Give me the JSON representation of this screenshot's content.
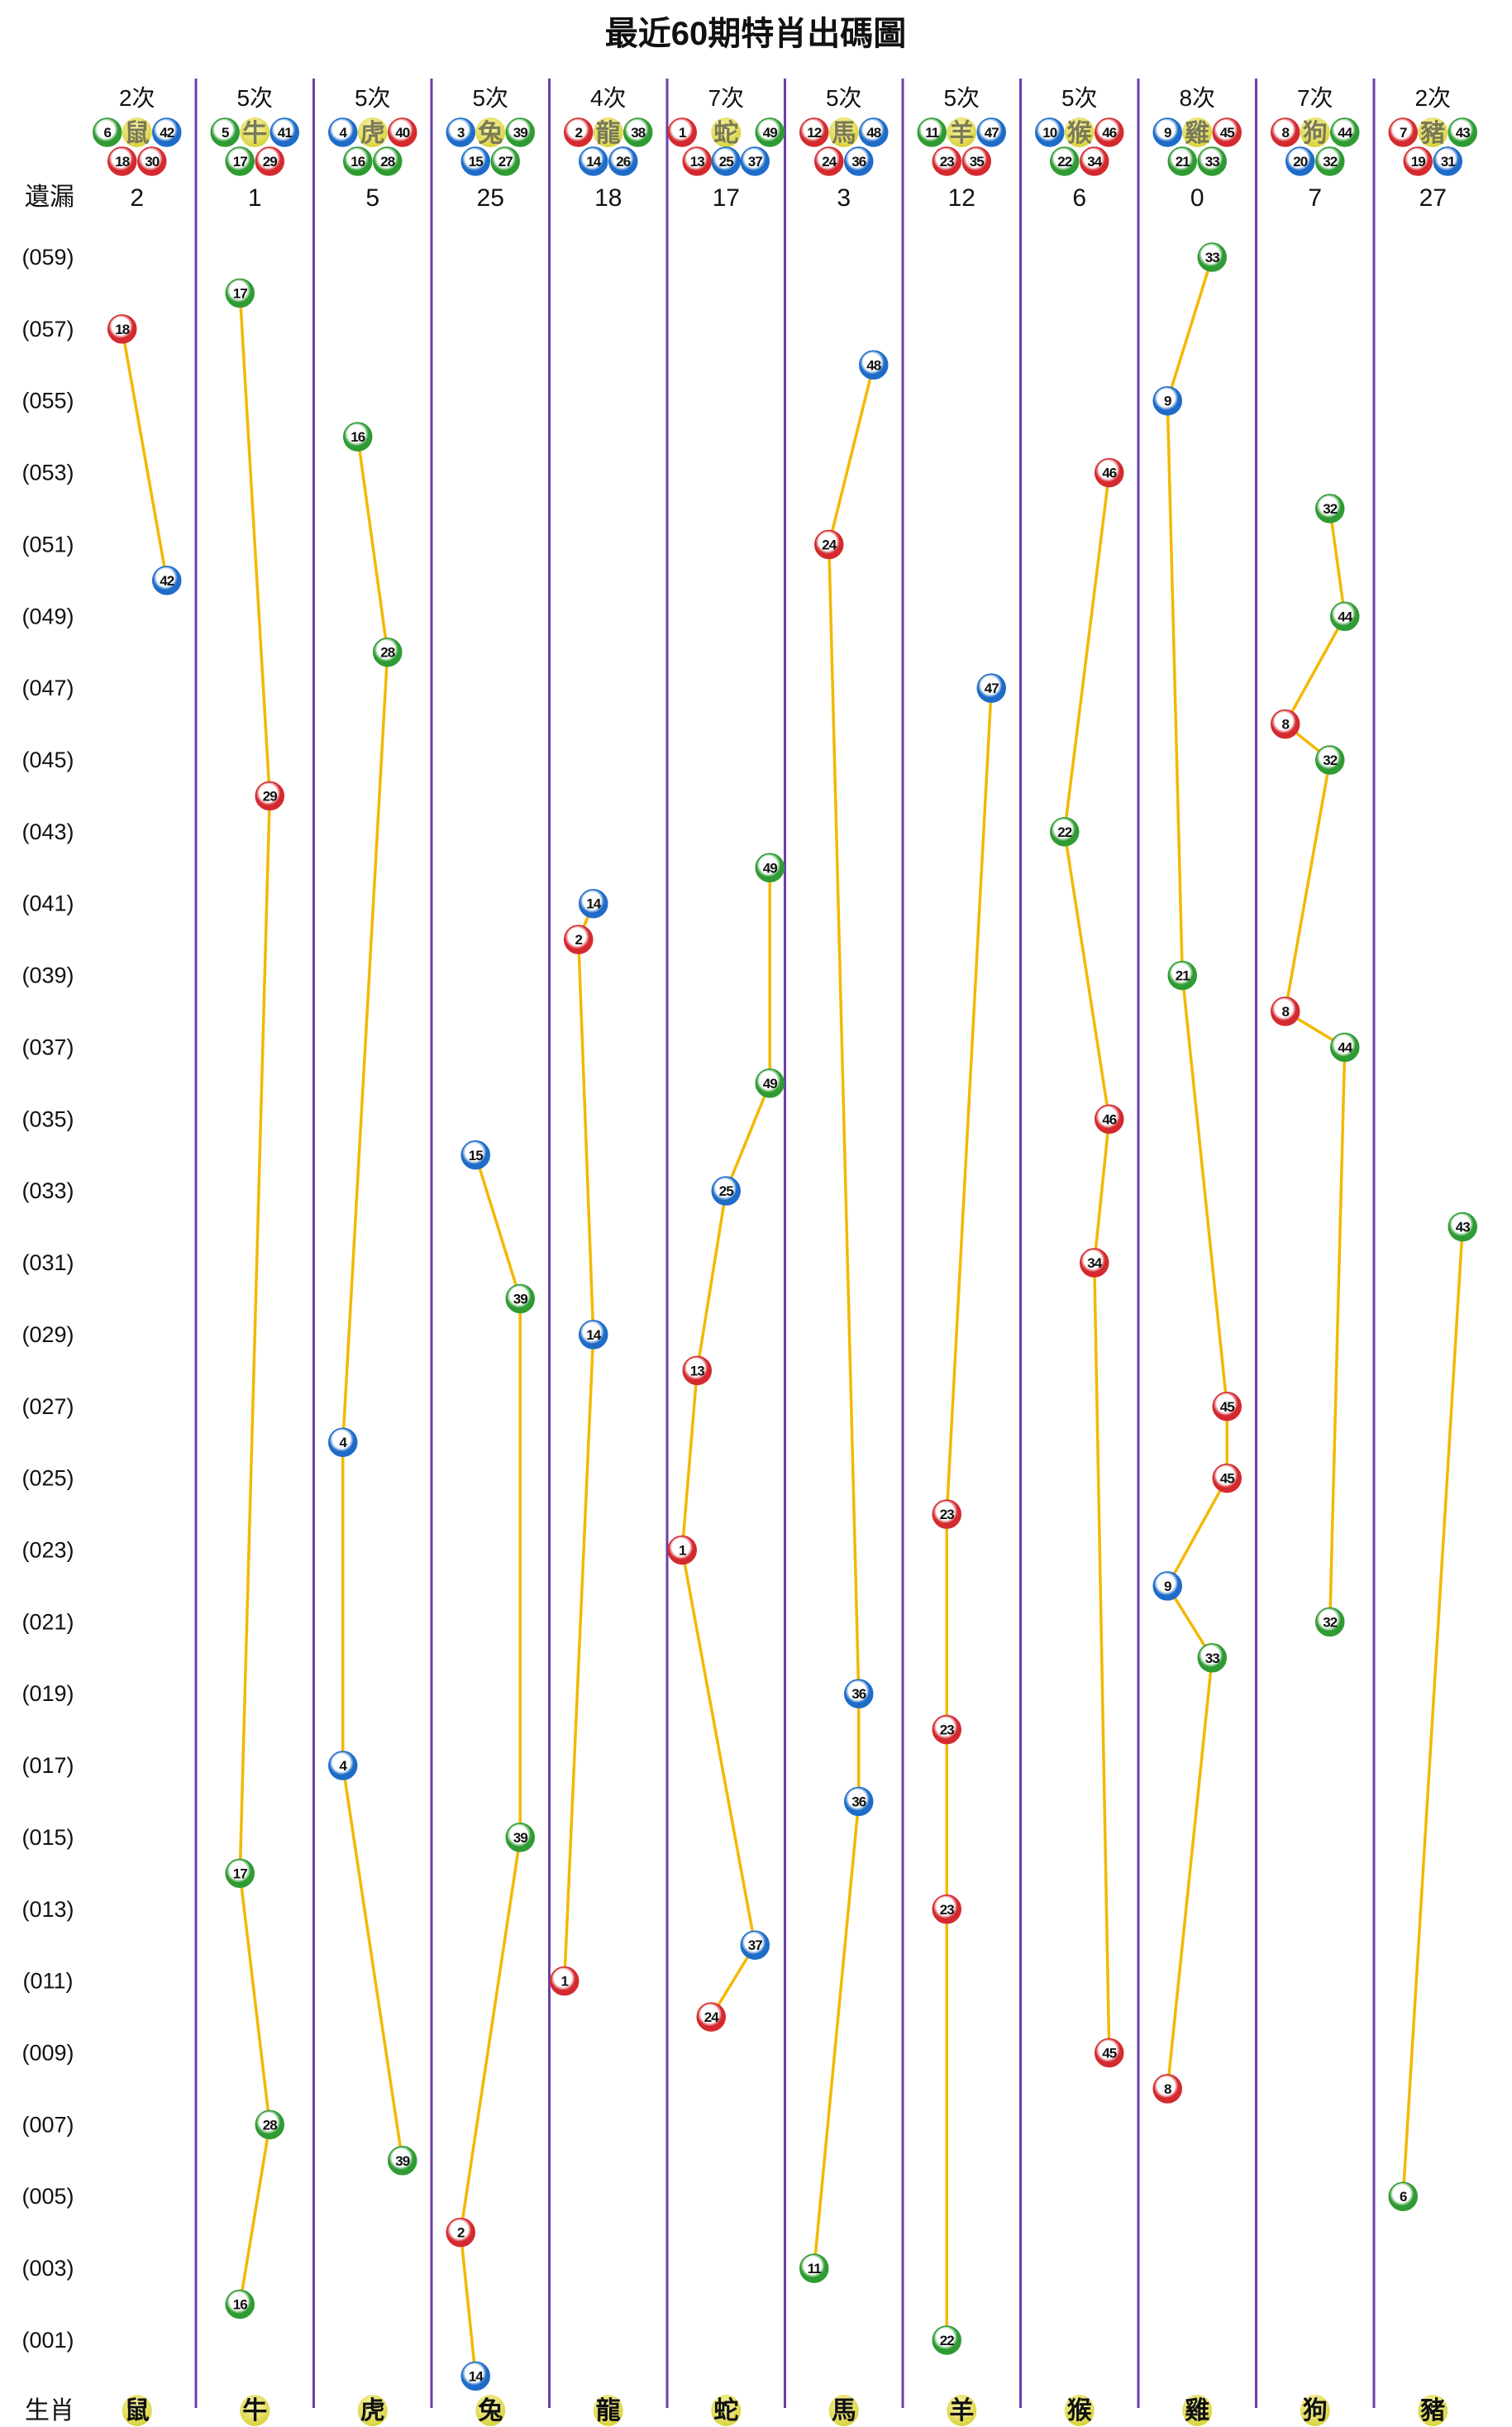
{
  "chart_data": {
    "type": "scatter",
    "title": "最近60期特肖出碼圖",
    "missing_label": "遺漏",
    "zodiac_label": "生肖",
    "columns": [
      {
        "zodiac": "鼠",
        "count": "2次",
        "numbers": [
          6,
          18,
          30,
          42
        ],
        "missing": "2"
      },
      {
        "zodiac": "牛",
        "count": "5次",
        "numbers": [
          5,
          17,
          29,
          41
        ],
        "missing": "1"
      },
      {
        "zodiac": "虎",
        "count": "5次",
        "numbers": [
          4,
          16,
          28,
          40
        ],
        "missing": "5"
      },
      {
        "zodiac": "兔",
        "count": "5次",
        "numbers": [
          3,
          15,
          27,
          39
        ],
        "missing": "25"
      },
      {
        "zodiac": "龍",
        "count": "4次",
        "numbers": [
          2,
          14,
          26,
          38
        ],
        "missing": "18"
      },
      {
        "zodiac": "蛇",
        "count": "7次",
        "numbers": [
          1,
          13,
          25,
          37,
          49
        ],
        "missing": "17"
      },
      {
        "zodiac": "馬",
        "count": "5次",
        "numbers": [
          12,
          24,
          36,
          48
        ],
        "missing": "3"
      },
      {
        "zodiac": "羊",
        "count": "5次",
        "numbers": [
          11,
          23,
          35,
          47
        ],
        "missing": "12"
      },
      {
        "zodiac": "猴",
        "count": "5次",
        "numbers": [
          10,
          22,
          34,
          46
        ],
        "missing": "6"
      },
      {
        "zodiac": "雞",
        "count": "8次",
        "numbers": [
          9,
          21,
          33,
          45
        ],
        "missing": "0"
      },
      {
        "zodiac": "狗",
        "count": "7次",
        "numbers": [
          8,
          20,
          32,
          44
        ],
        "missing": "7"
      },
      {
        "zodiac": "豬",
        "count": "2次",
        "numbers": [
          7,
          19,
          31,
          43
        ],
        "missing": "27"
      }
    ],
    "row_labels": [
      "(059)",
      "(057)",
      "(055)",
      "(053)",
      "(051)",
      "(049)",
      "(047)",
      "(045)",
      "(043)",
      "(041)",
      "(039)",
      "(037)",
      "(035)",
      "(033)",
      "(031)",
      "(029)",
      "(027)",
      "(025)",
      "(023)",
      "(021)",
      "(019)",
      "(017)",
      "(015)",
      "(013)",
      "(011)",
      "(009)",
      "(007)",
      "(005)",
      "(003)",
      "(001)"
    ],
    "draws_newest_first": [
      {
        "n": 33,
        "z": "雞"
      },
      {
        "n": 17,
        "z": "牛"
      },
      {
        "n": 18,
        "z": "鼠"
      },
      {
        "n": 48,
        "z": "馬"
      },
      {
        "n": 9,
        "z": "雞"
      },
      {
        "n": 16,
        "z": "虎"
      },
      {
        "n": 46,
        "z": "猴"
      },
      {
        "n": 32,
        "z": "狗"
      },
      {
        "n": 24,
        "z": "馬"
      },
      {
        "n": 42,
        "z": "鼠"
      },
      {
        "n": 44,
        "z": "狗"
      },
      {
        "n": 28,
        "z": "虎"
      },
      {
        "n": 47,
        "z": "羊"
      },
      {
        "n": 8,
        "z": "狗"
      },
      {
        "n": 32,
        "z": "狗"
      },
      {
        "n": 29,
        "z": "牛"
      },
      {
        "n": 22,
        "z": "猴"
      },
      {
        "n": 49,
        "z": "蛇"
      },
      {
        "n": 14,
        "z": "龍"
      },
      {
        "n": 2,
        "z": "龍"
      },
      {
        "n": 21,
        "z": "雞"
      },
      {
        "n": 8,
        "z": "狗"
      },
      {
        "n": 44,
        "z": "狗"
      },
      {
        "n": 49,
        "z": "蛇"
      },
      {
        "n": 46,
        "z": "猴"
      },
      {
        "n": 15,
        "z": "兔"
      },
      {
        "n": 25,
        "z": "蛇"
      },
      {
        "n": 43,
        "z": "豬"
      },
      {
        "n": 34,
        "z": "猴"
      },
      {
        "n": 39,
        "z": "兔"
      },
      {
        "n": 14,
        "z": "龍"
      },
      {
        "n": 13,
        "z": "蛇"
      },
      {
        "n": 45,
        "z": "雞"
      },
      {
        "n": 4,
        "z": "虎"
      },
      {
        "n": 45,
        "z": "雞"
      },
      {
        "n": 23,
        "z": "羊"
      },
      {
        "n": 1,
        "z": "蛇"
      },
      {
        "n": 9,
        "z": "雞"
      },
      {
        "n": 32,
        "z": "狗"
      },
      {
        "n": 33,
        "z": "雞"
      },
      {
        "n": 36,
        "z": "馬"
      },
      {
        "n": 23,
        "z": "羊"
      },
      {
        "n": 4,
        "z": "虎"
      },
      {
        "n": 36,
        "z": "馬"
      },
      {
        "n": 39,
        "z": "兔"
      },
      {
        "n": 17,
        "z": "牛"
      },
      {
        "n": 23,
        "z": "羊"
      },
      {
        "n": 37,
        "z": "蛇"
      },
      {
        "n": 1,
        "z": "龍"
      },
      {
        "n": 24,
        "z": "蛇"
      },
      {
        "n": 45,
        "z": "猴"
      },
      {
        "n": 8,
        "z": "雞"
      },
      {
        "n": 28,
        "z": "牛"
      },
      {
        "n": 39,
        "z": "虎"
      },
      {
        "n": 6,
        "z": "豬"
      },
      {
        "n": 2,
        "z": "兔"
      },
      {
        "n": 11,
        "z": "馬"
      },
      {
        "n": 16,
        "z": "牛"
      },
      {
        "n": 22,
        "z": "羊"
      },
      {
        "n": 14,
        "z": "兔"
      }
    ],
    "ball_colors": {
      "red": [
        1,
        2,
        7,
        8,
        12,
        13,
        18,
        19,
        23,
        24,
        29,
        30,
        34,
        35,
        40,
        45,
        46
      ],
      "blue": [
        3,
        4,
        9,
        10,
        14,
        15,
        20,
        25,
        26,
        31,
        36,
        37,
        41,
        42,
        47,
        48
      ],
      "green": [
        5,
        6,
        11,
        16,
        17,
        21,
        22,
        27,
        28,
        32,
        33,
        38,
        39,
        43,
        44,
        49
      ]
    },
    "colors": {
      "red": "#d42a2f",
      "blue": "#1e6cc8",
      "green": "#2f9b33",
      "line": "#f4b800",
      "divider": "#6a3fa8",
      "zodiac_ball": "#d8d23a"
    }
  }
}
